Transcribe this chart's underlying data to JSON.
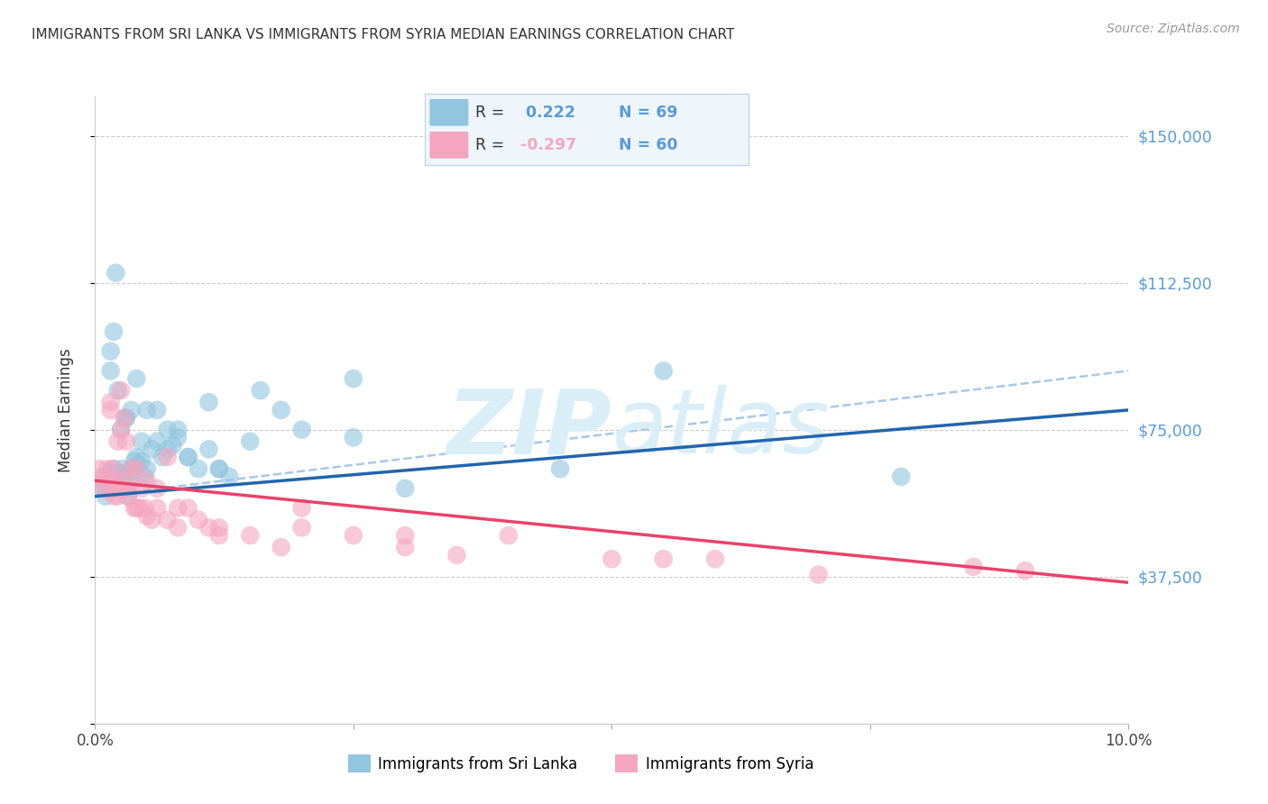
{
  "title": "IMMIGRANTS FROM SRI LANKA VS IMMIGRANTS FROM SYRIA MEDIAN EARNINGS CORRELATION CHART",
  "source": "Source: ZipAtlas.com",
  "ylabel": "Median Earnings",
  "y_ticks": [
    0,
    37500,
    75000,
    112500,
    150000
  ],
  "y_tick_labels": [
    "",
    "$37,500",
    "$75,000",
    "$112,500",
    "$150,000"
  ],
  "x_range": [
    0.0,
    10.0
  ],
  "y_range": [
    0,
    160000
  ],
  "sri_lanka_R": 0.222,
  "sri_lanka_N": 69,
  "syria_R": -0.297,
  "syria_N": 60,
  "sri_lanka_color": "#92c5de",
  "syria_color": "#f4a6c0",
  "sri_lanka_line_color": "#2166ac",
  "syria_line_color": "#e8436a",
  "dashed_line_color": "#a8c8e8",
  "background_color": "#ffffff",
  "grid_color": "#cccccc",
  "title_color": "#333333",
  "right_axis_color": "#5b9bd5",
  "watermark_color": "#daeef8",
  "legend_box_facecolor": "#eef6fc",
  "legend_box_edgecolor": "#b8d4e8",
  "sri_lanka_x": [
    0.05,
    0.08,
    0.1,
    0.12,
    0.13,
    0.14,
    0.15,
    0.16,
    0.17,
    0.18,
    0.19,
    0.2,
    0.21,
    0.22,
    0.23,
    0.25,
    0.26,
    0.27,
    0.28,
    0.3,
    0.31,
    0.32,
    0.33,
    0.35,
    0.36,
    0.38,
    0.4,
    0.42,
    0.45,
    0.48,
    0.5,
    0.55,
    0.6,
    0.65,
    0.7,
    0.75,
    0.8,
    0.9,
    1.0,
    1.1,
    1.2,
    1.3,
    1.5,
    1.8,
    2.0,
    2.5,
    3.0,
    0.15,
    0.22,
    0.35,
    0.5,
    0.7,
    0.9,
    1.2,
    0.4,
    0.3,
    0.25,
    4.5,
    0.18,
    0.2,
    0.3,
    0.45,
    0.6,
    0.8,
    1.1,
    1.6,
    2.5,
    5.5,
    7.8
  ],
  "sri_lanka_y": [
    62000,
    60000,
    58000,
    62000,
    64000,
    60000,
    90000,
    62000,
    64000,
    65000,
    61000,
    63000,
    62000,
    64000,
    60000,
    63000,
    65000,
    61000,
    63000,
    62000,
    60000,
    58000,
    64000,
    65000,
    62000,
    67000,
    68000,
    66000,
    67000,
    63000,
    65000,
    70000,
    72000,
    68000,
    75000,
    71000,
    73000,
    68000,
    65000,
    70000,
    65000,
    63000,
    72000,
    80000,
    75000,
    73000,
    60000,
    95000,
    85000,
    80000,
    80000,
    70000,
    68000,
    65000,
    88000,
    78000,
    75000,
    65000,
    100000,
    115000,
    78000,
    72000,
    80000,
    75000,
    82000,
    85000,
    88000,
    90000,
    63000
  ],
  "syria_x": [
    0.04,
    0.06,
    0.08,
    0.1,
    0.12,
    0.14,
    0.15,
    0.16,
    0.17,
    0.18,
    0.19,
    0.2,
    0.22,
    0.24,
    0.25,
    0.27,
    0.28,
    0.3,
    0.32,
    0.35,
    0.38,
    0.4,
    0.43,
    0.45,
    0.48,
    0.5,
    0.55,
    0.6,
    0.7,
    0.8,
    0.9,
    1.0,
    1.1,
    1.2,
    1.5,
    1.8,
    2.0,
    2.5,
    3.0,
    3.5,
    4.0,
    5.0,
    6.0,
    0.22,
    0.35,
    0.5,
    0.7,
    0.3,
    0.4,
    0.6,
    0.8,
    1.2,
    2.0,
    3.0,
    5.5,
    8.5,
    0.15,
    0.25,
    9.0,
    7.0
  ],
  "syria_y": [
    65000,
    63000,
    60000,
    62000,
    65000,
    62000,
    80000,
    60000,
    65000,
    58000,
    60000,
    62000,
    58000,
    60000,
    85000,
    60000,
    78000,
    62000,
    58000,
    60000,
    55000,
    55000,
    55000,
    60000,
    55000,
    53000,
    52000,
    55000,
    52000,
    50000,
    55000,
    52000,
    50000,
    48000,
    48000,
    45000,
    50000,
    48000,
    45000,
    43000,
    48000,
    42000,
    42000,
    72000,
    65000,
    62000,
    68000,
    72000,
    65000,
    60000,
    55000,
    50000,
    55000,
    48000,
    42000,
    40000,
    82000,
    75000,
    39000,
    38000
  ],
  "sl_reg_x0": 0.0,
  "sl_reg_y0": 58000,
  "sl_reg_x1": 10.0,
  "sl_reg_y1": 80000,
  "sy_reg_x0": 0.0,
  "sy_reg_y0": 62000,
  "sy_reg_x1": 10.0,
  "sy_reg_y1": 36000,
  "dash_reg_x0": 0.0,
  "dash_reg_y0": 58000,
  "dash_reg_x1": 10.0,
  "dash_reg_y1": 90000
}
